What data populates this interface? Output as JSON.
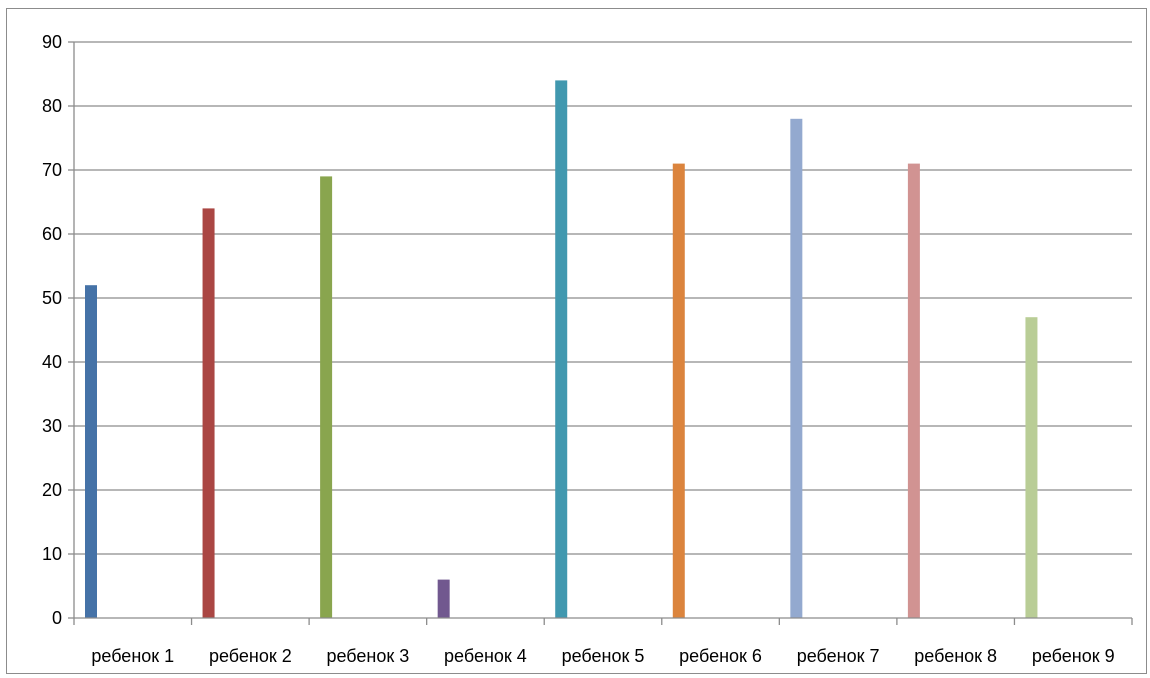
{
  "chart_data": {
    "type": "bar",
    "title": "",
    "xlabel": "",
    "ylabel": "",
    "categories": [
      "ребенок 1",
      "ребенок 2",
      "ребенок 3",
      "ребенок 4",
      "ребенок 5",
      "ребенок 6",
      "ребенок 7",
      "ребенок 8",
      "ребенок 9"
    ],
    "values": [
      52,
      64,
      69,
      6,
      84,
      71,
      78,
      71,
      47
    ],
    "colors": [
      "#4572a7",
      "#aa4643",
      "#89a54e",
      "#71588f",
      "#4198af",
      "#db843d",
      "#93a9cf",
      "#d19392",
      "#b9cd96"
    ],
    "ylim": [
      0,
      90
    ],
    "yticks": [
      0,
      10,
      20,
      30,
      40,
      50,
      60,
      70,
      80,
      90
    ],
    "ytick_labels": [
      "0",
      "10",
      "20",
      "30",
      "40",
      "50",
      "60",
      "70",
      "80",
      "90"
    ],
    "grid": true,
    "legend": "none"
  }
}
